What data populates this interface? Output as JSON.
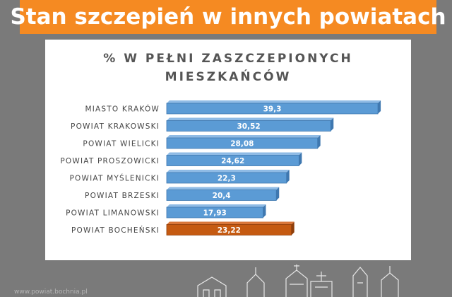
{
  "banner": {
    "title": "Stan szczepień w innych powiatach"
  },
  "footer": {
    "url": "www.powiat.bochnia.pl"
  },
  "colors": {
    "banner": "#f58a22",
    "bar": "#5b9bd5",
    "highlight": "#c55a11",
    "background": "#7a7a7a"
  },
  "chart_data": {
    "type": "bar",
    "orientation": "horizontal",
    "title_lines": [
      "% W PEŁNI ZASZCZEPIONYCH",
      "MIESZKAŃCÓW"
    ],
    "categories": [
      "MIASTO KRAKÓW",
      "POWIAT KRAKOWSKI",
      "POWIAT WIELICKI",
      "POWIAT PROSZOWICKI",
      "POWIAT MYŚLENICKI",
      "POWIAT BRZESKI",
      "POWIAT LIMANOWSKI",
      "POWIAT BOCHEŃSKI"
    ],
    "values": [
      39.3,
      30.52,
      28.08,
      24.62,
      22.3,
      20.4,
      17.93,
      23.22
    ],
    "value_labels": [
      "39,3",
      "30,52",
      "28,08",
      "24,62",
      "22,3",
      "20,4",
      "17,93",
      "23,22"
    ],
    "highlighted": "POWIAT BOCHEŃSKI",
    "xlim": [
      0,
      41
    ],
    "grid": false,
    "legend": "none"
  }
}
